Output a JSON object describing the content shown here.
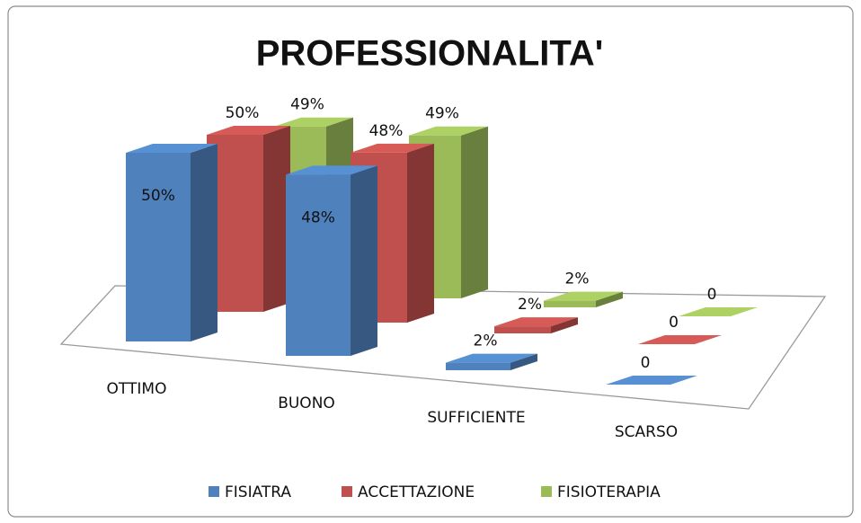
{
  "chart_data": {
    "type": "bar3d",
    "title": "PROFESSIONALITA'",
    "categories": [
      "OTTIMO",
      "BUONO",
      "SUFFICIENTE",
      "SCARSO"
    ],
    "series": [
      {
        "name": "FISIATRA",
        "color": "#4f81bd",
        "values": [
          50,
          48,
          2,
          0
        ],
        "value_labels": [
          "50%",
          "48%",
          "2%",
          "0"
        ]
      },
      {
        "name": "ACCETTAZIONE",
        "color": "#c0504d",
        "values": [
          50,
          48,
          2,
          0
        ],
        "value_labels": [
          "50%",
          "48%",
          "2%",
          "0"
        ]
      },
      {
        "name": "FISIOTERAPIA",
        "color": "#9bbb59",
        "values": [
          49,
          49,
          2,
          0
        ],
        "value_labels": [
          "49%",
          "49%",
          "2%",
          "0"
        ]
      }
    ],
    "legend": "bottom"
  }
}
